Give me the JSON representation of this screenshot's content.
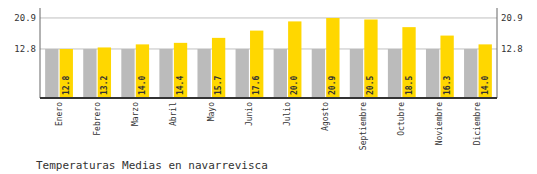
{
  "chart_data": {
    "type": "bar",
    "title": "Temperaturas Medias en navarrevisca",
    "categories": [
      "Enero",
      "Febrero",
      "Marzo",
      "Abril",
      "Mayo",
      "Junio",
      "Julio",
      "Agosto",
      "Septiembre",
      "Octubre",
      "Noviembre",
      "Diciembre"
    ],
    "series": [
      {
        "color": "#BBBBBB",
        "values": [
          12.8,
          12.8,
          12.8,
          12.8,
          12.8,
          12.8,
          12.8,
          12.8,
          12.8,
          12.8,
          12.8,
          12.8
        ]
      },
      {
        "color": "#FFD700",
        "values": [
          12.8,
          13.2,
          14.0,
          14.4,
          15.7,
          17.6,
          20.0,
          20.9,
          20.5,
          18.5,
          16.3,
          14.0
        ],
        "data_labels": true,
        "value_labels": [
          "12.8",
          "13.2",
          "14.0",
          "14.4",
          "15.7",
          "17.6",
          "20.0",
          "20.9",
          "20.5",
          "18.5",
          "16.3",
          "14.0"
        ]
      }
    ],
    "ylim": [
      0.0,
      23.5
    ],
    "yticks": [
      12.8,
      20.9
    ],
    "y2lim": [
      0.0,
      23.5
    ],
    "y2ticks": [
      12.8,
      20.9
    ],
    "grid": true
  }
}
